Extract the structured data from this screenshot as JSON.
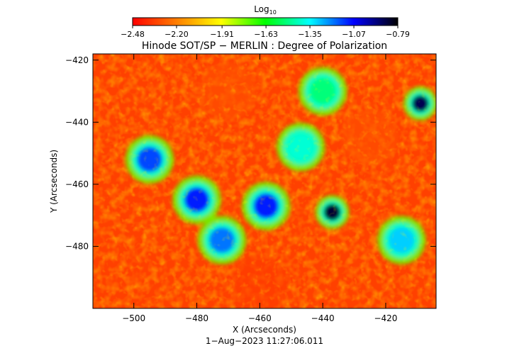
{
  "chart_data": {
    "type": "heatmap",
    "title": "Hinode SOT/SP − MERLIN : Degree of Polarization",
    "xlabel": "X (Arcseconds)",
    "ylabel": "Y (Arcseconds)",
    "xlim": [
      -513,
      -404
    ],
    "ylim": [
      -500,
      -418
    ],
    "x_ticks": [
      -500,
      -480,
      -460,
      -440,
      -420
    ],
    "x_tick_labels": [
      "−500",
      "−480",
      "−460",
      "−440",
      "−420"
    ],
    "y_ticks": [
      -420,
      -440,
      -460,
      -480
    ],
    "y_tick_labels": [
      "−420",
      "−440",
      "−460",
      "−480"
    ],
    "timestamp": "1−Aug−2023 11:27:06.011",
    "colorbar": {
      "label_base": "Log",
      "label_sub": "10",
      "min": -2.48,
      "max": -0.79,
      "ticks": [
        -2.48,
        -2.2,
        -1.91,
        -1.63,
        -1.35,
        -1.07,
        -0.79
      ],
      "tick_labels": [
        "−2.48",
        "−2.20",
        "−1.91",
        "−1.63",
        "−1.35",
        "−1.07",
        "−0.79"
      ],
      "colors": [
        "#ff0000",
        "#ff7f00",
        "#ffff00",
        "#00ff00",
        "#00ffff",
        "#0000ff",
        "#000000"
      ]
    },
    "features": [
      {
        "kind": "magnetic-concentration",
        "x": -437,
        "y": -469,
        "value": -0.85
      },
      {
        "kind": "magnetic-concentration",
        "x": -409,
        "y": -434,
        "value": -0.88
      },
      {
        "kind": "network-lane",
        "x": -495,
        "y": -452,
        "value": -1.15
      },
      {
        "kind": "network-lane",
        "x": -480,
        "y": -465,
        "value": -1.1
      },
      {
        "kind": "network-lane",
        "x": -472,
        "y": -478,
        "value": -1.2
      },
      {
        "kind": "network-lane",
        "x": -458,
        "y": -467,
        "value": -1.1
      },
      {
        "kind": "network-lane",
        "x": -447,
        "y": -448,
        "value": -1.4
      },
      {
        "kind": "network-lane",
        "x": -440,
        "y": -430,
        "value": -1.5
      },
      {
        "kind": "network-lane",
        "x": -415,
        "y": -478,
        "value": -1.3
      },
      {
        "kind": "quiet-sun",
        "x": -470,
        "y": -430,
        "value": -2.3
      },
      {
        "kind": "quiet-sun",
        "x": -425,
        "y": -445,
        "value": -2.3
      },
      {
        "kind": "quiet-sun",
        "x": -460,
        "y": -492,
        "value": -2.35
      }
    ]
  }
}
